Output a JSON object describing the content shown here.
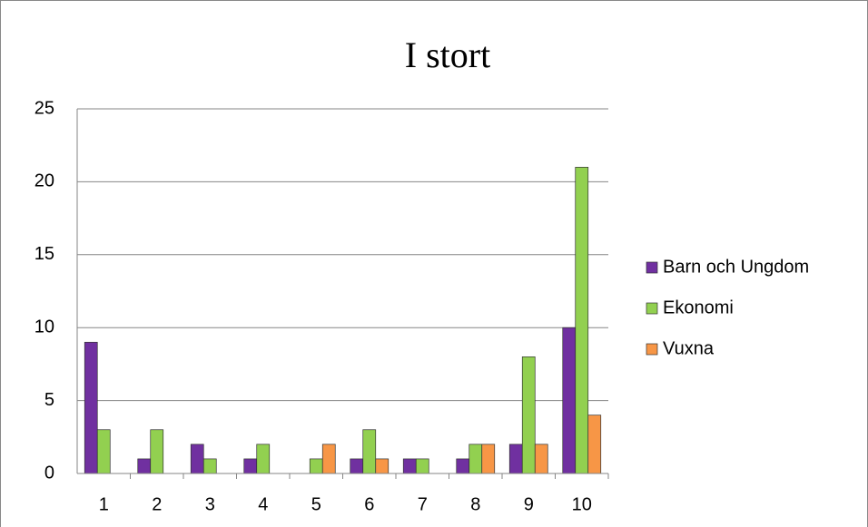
{
  "chart_data": {
    "type": "bar",
    "title": "I stort",
    "categories": [
      "1",
      "2",
      "3",
      "4",
      "5",
      "6",
      "7",
      "8",
      "9",
      "10"
    ],
    "series": [
      {
        "name": "Barn och Ungdom",
        "color": "#7030a0",
        "values": [
          9,
          1,
          2,
          1,
          0,
          1,
          1,
          1,
          2,
          10
        ]
      },
      {
        "name": "Ekonomi",
        "color": "#92d050",
        "values": [
          3,
          3,
          1,
          2,
          1,
          3,
          1,
          2,
          8,
          21
        ]
      },
      {
        "name": "Vuxna",
        "color": "#f79646",
        "values": [
          0,
          0,
          0,
          0,
          2,
          1,
          0,
          2,
          2,
          4
        ]
      }
    ],
    "ylim": [
      0,
      25
    ],
    "yticks": [
      0,
      5,
      10,
      15,
      20,
      25
    ],
    "grid": true,
    "legend": "right"
  }
}
